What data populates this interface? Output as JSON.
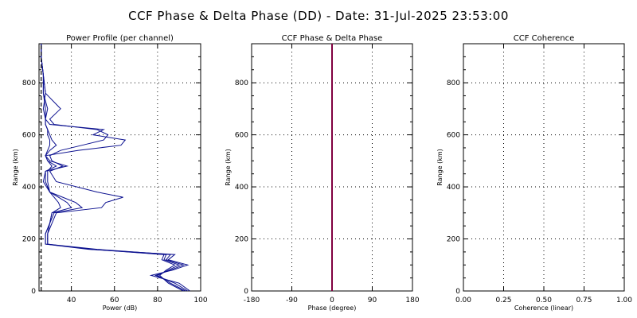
{
  "figure": {
    "title": "CCF Phase & Delta Phase (DD) - Date: 31-Jul-2025 23:53:00"
  },
  "colors": {
    "power": "#0b108f",
    "phase": "#800040",
    "grid": "#000000"
  },
  "chart_data": [
    {
      "type": "line",
      "title": "Power Profile (per channel)",
      "xlabel": "Power (dB)",
      "ylabel": "Range (km)",
      "xlim": [
        25,
        100
      ],
      "ylim": [
        0,
        950
      ],
      "xticks": [
        "40",
        "60",
        "80",
        "100"
      ],
      "yticks": [
        "0",
        "200",
        "400",
        "600",
        "800"
      ],
      "grid": true,
      "series": [
        {
          "range_km": [
            0,
            30,
            60,
            80,
            100,
            120,
            140,
            160,
            180,
            220,
            260,
            300,
            320,
            340,
            360,
            380,
            420,
            460,
            480,
            500,
            520,
            540,
            560,
            580,
            600,
            620,
            640,
            660,
            700,
            760,
            830,
            900,
            950
          ],
          "power_db": [
            95,
            90,
            77,
            87,
            94,
            85,
            88,
            48,
            28,
            28,
            30,
            32,
            45,
            42,
            36,
            30,
            27,
            28,
            38,
            30,
            28,
            43,
            63,
            65,
            50,
            55,
            30,
            28,
            27,
            28,
            27,
            26,
            26
          ]
        },
        {
          "range_km": [
            0,
            30,
            60,
            80,
            100,
            120,
            140,
            160,
            180,
            220,
            260,
            300,
            320,
            340,
            360,
            380,
            420,
            460,
            480,
            500,
            520,
            540,
            560,
            580,
            600,
            620,
            640,
            660,
            700,
            760,
            830,
            900,
            950
          ],
          "power_db": [
            94,
            88,
            79,
            86,
            92,
            84,
            86,
            52,
            29,
            29,
            31,
            33,
            54,
            56,
            64,
            52,
            33,
            30,
            36,
            31,
            30,
            35,
            45,
            55,
            57,
            52,
            32,
            30,
            35,
            28,
            27,
            26,
            26
          ]
        },
        {
          "range_km": [
            0,
            30,
            60,
            80,
            100,
            120,
            140,
            160,
            180,
            220,
            260,
            300,
            320,
            340,
            360,
            380,
            420,
            460,
            480,
            500,
            520,
            540,
            560,
            580,
            600,
            620,
            640,
            660,
            700,
            760,
            830,
            900,
            950
          ],
          "power_db": [
            93,
            86,
            80,
            85,
            90,
            83,
            84,
            50,
            28,
            28,
            30,
            31,
            40,
            38,
            34,
            30,
            28,
            28,
            33,
            29,
            28,
            30,
            33,
            31,
            30,
            29,
            28,
            28,
            29,
            27,
            27,
            26,
            26
          ]
        },
        {
          "range_km": [
            0,
            30,
            60,
            80,
            100,
            120,
            140,
            160,
            180,
            220,
            260,
            300,
            320,
            340,
            360,
            380,
            420,
            460,
            480,
            500,
            520,
            540,
            560,
            580,
            600,
            620,
            640,
            660,
            700,
            760,
            830,
            900,
            950
          ],
          "power_db": [
            92,
            85,
            81,
            84,
            88,
            82,
            83,
            49,
            29,
            29,
            30,
            31,
            35,
            34,
            32,
            30,
            29,
            29,
            31,
            29,
            28,
            29,
            30,
            30,
            29,
            29,
            28,
            28,
            28,
            27,
            27,
            26,
            26
          ]
        },
        {
          "range_km": [
            0,
            950
          ],
          "power_db": [
            26,
            26
          ],
          "dashed": true
        }
      ]
    },
    {
      "type": "line",
      "title": "CCF Phase & Delta Phase",
      "xlabel": "Phase (degree)",
      "ylabel": "Range (km)",
      "xlim": [
        -180,
        180
      ],
      "ylim": [
        0,
        950
      ],
      "xticks": [
        "-180",
        "-90",
        "0",
        "90",
        "180"
      ],
      "yticks": [
        "0",
        "200",
        "400",
        "600",
        "800"
      ],
      "grid": true,
      "series": [
        {
          "range_km": [
            0,
            950
          ],
          "phase_deg": [
            0,
            0
          ]
        }
      ]
    },
    {
      "type": "line",
      "title": "CCF Coherence",
      "xlabel": "Coherence (linear)",
      "ylabel": "Range (km)",
      "xlim": [
        0,
        1
      ],
      "ylim": [
        0,
        950
      ],
      "xticks": [
        "0.00",
        "0.25",
        "0.50",
        "0.75",
        "1.00"
      ],
      "yticks": [
        "0",
        "200",
        "400",
        "600",
        "800"
      ],
      "grid": true,
      "series": []
    }
  ]
}
